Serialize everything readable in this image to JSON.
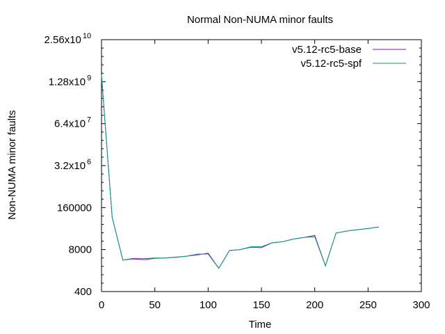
{
  "chart_data": {
    "type": "line",
    "title": "Normal Non-NUMA minor faults",
    "xlabel": "Time",
    "ylabel": "Non-NUMA minor faults",
    "xlim": [
      0,
      300
    ],
    "ylim": [
      400,
      25600000000
    ],
    "yscale": "log",
    "grid": false,
    "legend_position": "top-right",
    "x_ticks": [
      "0",
      "50",
      "100",
      "150",
      "200",
      "250",
      "300"
    ],
    "y_ticks": [
      {
        "value": 400,
        "mantissa": "400",
        "exponent": ""
      },
      {
        "value": 8000,
        "mantissa": "8000",
        "exponent": ""
      },
      {
        "value": 160000,
        "mantissa": "160000",
        "exponent": ""
      },
      {
        "value": 3200000,
        "mantissa": "3.2x10",
        "exponent": "6"
      },
      {
        "value": 64000000,
        "mantissa": "6.4x10",
        "exponent": "7"
      },
      {
        "value": 1280000000,
        "mantissa": "1.28x10",
        "exponent": "9"
      },
      {
        "value": 25600000000,
        "mantissa": "2.56x10",
        "exponent": "10"
      }
    ],
    "series": [
      {
        "name": "v5.12-rc5-base",
        "color": "#9400d3",
        "x": [
          0,
          10,
          20,
          30,
          40,
          50,
          60,
          70,
          80,
          90,
          100,
          110,
          120,
          130,
          140,
          150,
          160,
          170,
          180,
          190,
          200,
          210,
          220,
          230,
          240,
          250,
          260
        ],
        "y": [
          2000000000,
          80000,
          3800,
          4100,
          3900,
          4300,
          4400,
          4600,
          5000,
          5500,
          6200,
          2100,
          7500,
          8000,
          9500,
          9200,
          13000,
          14000,
          17000,
          19000,
          22000,
          2500,
          26000,
          30000,
          33000,
          36000,
          40000
        ]
      },
      {
        "name": "v5.12-rc5-spf",
        "color": "#009e73",
        "x": [
          0,
          10,
          20,
          30,
          40,
          50,
          60,
          70,
          80,
          90,
          100,
          110,
          120,
          130,
          140,
          150,
          160,
          170,
          180,
          190,
          200,
          210,
          220,
          230,
          240,
          250,
          260
        ],
        "y": [
          2000000000,
          80000,
          3800,
          4300,
          4200,
          4400,
          4400,
          4700,
          5000,
          5800,
          5800,
          2100,
          7500,
          8000,
          9800,
          9800,
          13000,
          14000,
          17000,
          19000,
          20000,
          2500,
          26000,
          30000,
          33000,
          36000,
          40000
        ]
      }
    ]
  }
}
